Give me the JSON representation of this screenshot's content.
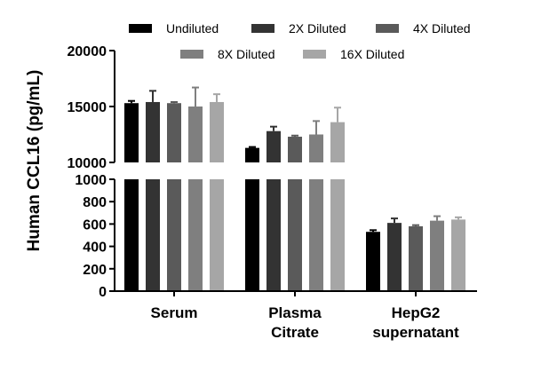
{
  "chart_data": {
    "type": "bar",
    "ylabel": "Human CCL16 (pg/mL)",
    "xlabel": "",
    "categories": [
      "Serum",
      "Plasma\nCitrate",
      "HepG2\nsupernatant"
    ],
    "series": [
      {
        "name": "Undiluted",
        "color": "#000000",
        "values": [
          15300,
          11300,
          530
        ],
        "errors": [
          200,
          80,
          15
        ]
      },
      {
        "name": "2X Diluted",
        "color": "#333333",
        "values": [
          15400,
          12800,
          610
        ],
        "errors": [
          1000,
          400,
          40
        ]
      },
      {
        "name": "4X Diluted",
        "color": "#5a5a5a",
        "values": [
          15300,
          12300,
          580
        ],
        "errors": [
          100,
          100,
          10
        ]
      },
      {
        "name": "8X Diluted",
        "color": "#7f7f7f",
        "values": [
          15000,
          12500,
          630
        ],
        "errors": [
          1700,
          1200,
          40
        ]
      },
      {
        "name": "16X Diluted",
        "color": "#a6a6a6",
        "values": [
          15400,
          13600,
          640
        ],
        "errors": [
          700,
          1300,
          20
        ]
      }
    ],
    "axis": {
      "segments": [
        {
          "range": [
            0,
            1000
          ],
          "ticks": [
            0,
            200,
            400,
            600,
            800,
            1000
          ]
        },
        {
          "range": [
            10000,
            20000
          ],
          "ticks": [
            10000,
            15000,
            20000
          ]
        }
      ]
    },
    "legend_position": "top"
  }
}
